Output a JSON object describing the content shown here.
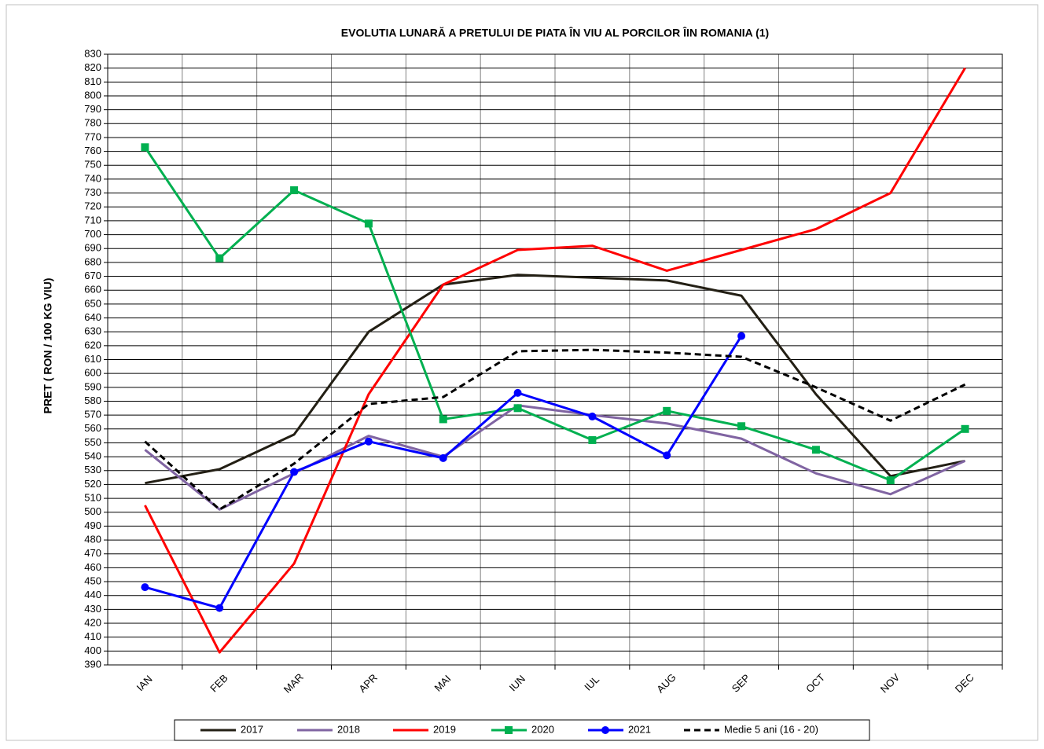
{
  "chart_data": {
    "type": "line",
    "title": "EVOLUTIA LUNARĂ A PRETULUI  DE PIATA ÎN VIU AL PORCILOR ÎIN ROMANIA (1)",
    "y_label": "PRET ( RON / 100 KG VIU)",
    "categories": [
      "IAN",
      "FEB",
      "MAR",
      "APR",
      "MAI",
      "IUN",
      "IUL",
      "AUG",
      "SEP",
      "OCT",
      "NOV",
      "DEC"
    ],
    "ylim": [
      390,
      830
    ],
    "yticks": [
      390,
      400,
      410,
      420,
      430,
      440,
      450,
      460,
      470,
      480,
      490,
      500,
      510,
      520,
      530,
      540,
      550,
      560,
      570,
      580,
      590,
      600,
      610,
      620,
      630,
      640,
      650,
      660,
      670,
      680,
      690,
      700,
      710,
      720,
      730,
      740,
      750,
      760,
      770,
      780,
      790,
      800,
      810,
      820,
      830
    ],
    "grid": true,
    "legend": "bottom",
    "series": [
      {
        "name": "2017",
        "color": "#231f14",
        "values": [
          521,
          531,
          556,
          630,
          664,
          671,
          669,
          667,
          656,
          585,
          526,
          537
        ]
      },
      {
        "name": "2018",
        "color": "#8064a2",
        "values": [
          545,
          502,
          528,
          555,
          540,
          577,
          570,
          564,
          553,
          528,
          513,
          537
        ]
      },
      {
        "name": "2019",
        "color": "#ff0000",
        "values": [
          505,
          399,
          463,
          585,
          664,
          689,
          692,
          674,
          689,
          704,
          730,
          820
        ]
      },
      {
        "name": "2020",
        "color": "#00b050",
        "marker": "square",
        "values": [
          763,
          683,
          732,
          708,
          567,
          575,
          552,
          573,
          562,
          545,
          523,
          560
        ]
      },
      {
        "name": "2021",
        "color": "#0000ff",
        "marker": "circle",
        "values": [
          446,
          431,
          529,
          551,
          539,
          586,
          569,
          541,
          627,
          null,
          null,
          null
        ]
      },
      {
        "name": "Medie 5 ani (16 - 20)",
        "color": "#000000",
        "dashed": true,
        "values": [
          551,
          502,
          535,
          578,
          583,
          616,
          617,
          615,
          612,
          590,
          566,
          592
        ]
      }
    ]
  }
}
